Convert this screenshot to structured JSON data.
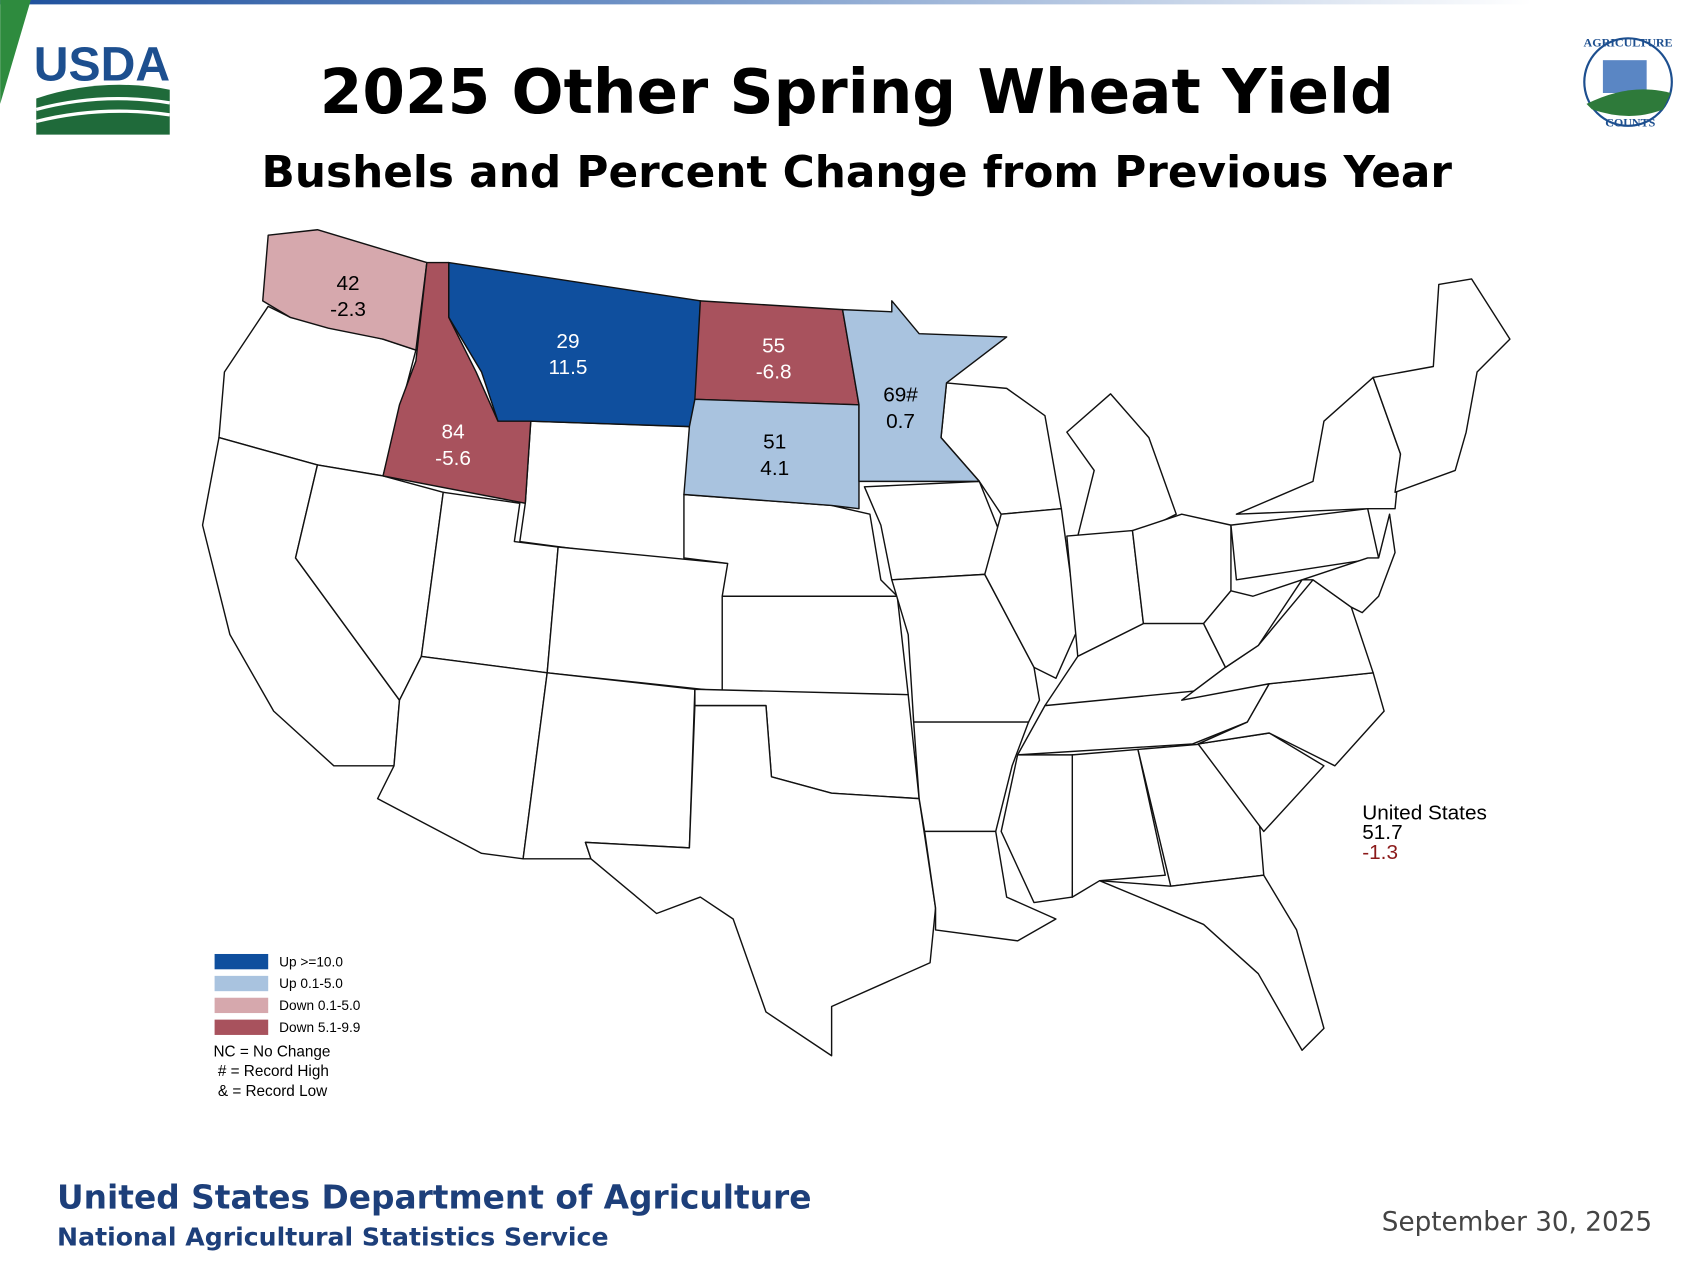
{
  "header": {
    "title": "2025 Other Spring Wheat Yield",
    "subtitle": "Bushels and Percent Change from Previous Year",
    "logo_left": "USDA",
    "logo_right_top": "AGRICULTURE",
    "logo_right_bottom": "COUNTS"
  },
  "states": [
    {
      "yield": 42,
      "change": -2.3,
      "color": "#d6a8ad"
    },
    {
      "yield": 29,
      "change": 11.5,
      "color": "#0f4f9e"
    },
    {
      "yield": 55,
      "change": -6.8,
      "color": "#a8525d"
    },
    {
      "yield": 84,
      "change": -5.6,
      "color": "#a8525d"
    },
    {
      "yield": 51,
      "change": 4.1,
      "color": "#a9c3df"
    },
    {
      "yield": {
        "value": 69,
        "label": "69#"
      },
      "change": 0.7,
      "color": "#a9c3df"
    }
  ],
  "united_states": {
    "name": "United States",
    "yield": 51.7,
    "change": -1.3,
    "change_color": "#8b1a1a"
  },
  "legend": [
    {
      "label": "Up >=10.0",
      "color": "#0f4f9e"
    },
    {
      "label": "Up 0.1-5.0",
      "color": "#a9c3df"
    },
    {
      "label": "Down 0.1-5.0",
      "color": "#d6a8ad"
    },
    {
      "label": "Down 5.1-9.9",
      "color": "#a8525d"
    }
  ],
  "notes": [
    "NC = No Change",
    "# = Record High",
    "& = Record Low"
  ],
  "footer": {
    "line1": "United States Department of Agriculture",
    "line2": "National Agricultural Statistics Service",
    "date": "September 30, 2025"
  }
}
